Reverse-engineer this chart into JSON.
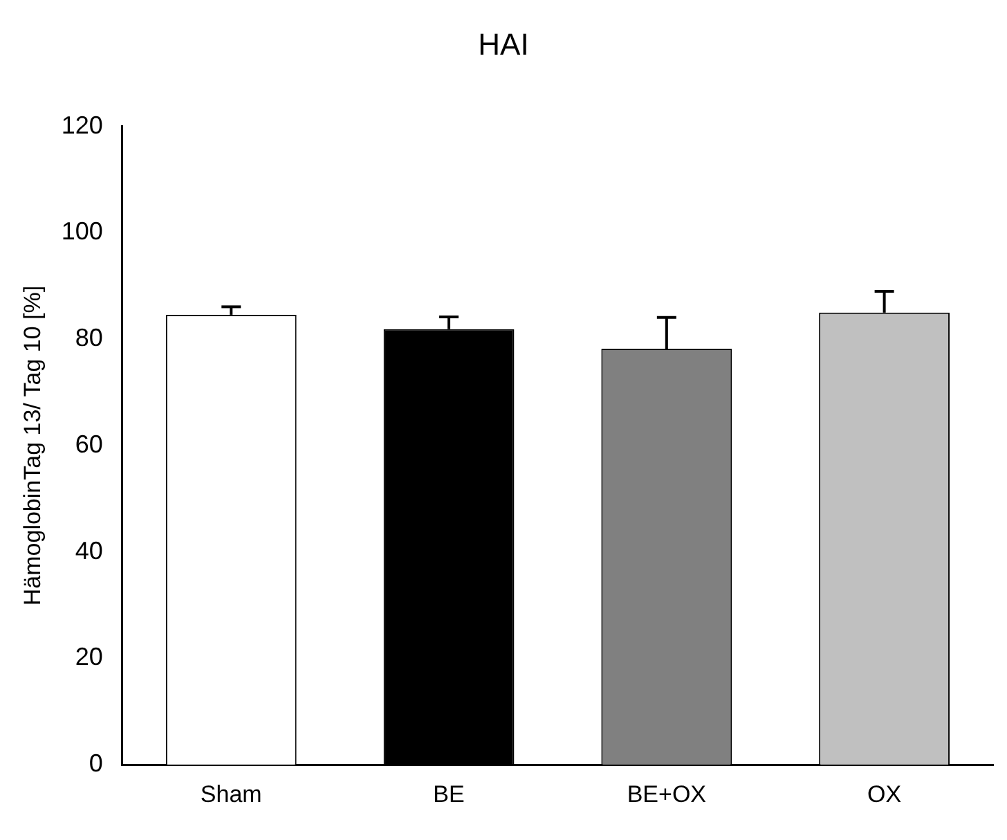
{
  "chart_data": {
    "type": "bar",
    "title": "HAI",
    "ylabel": "HämoglobinTag 13/ Tag 10 [%]",
    "categories": [
      "Sham",
      "BE",
      "BE+OX",
      "OX"
    ],
    "values": [
      84.6,
      81.9,
      78.2,
      85.0
    ],
    "colors": [
      "#ffffff",
      "#000000",
      "#808080",
      "#c0c0c0"
    ],
    "errors": [
      [
        84.6,
        86.1
      ],
      [
        81.9,
        84.2
      ],
      [
        78.2,
        84.1
      ],
      [
        85.0,
        89.0
      ]
    ],
    "ylim": [
      0,
      120
    ],
    "yticks": [
      0,
      20,
      40,
      60,
      80,
      100,
      120
    ],
    "grid": false,
    "legend": false
  }
}
